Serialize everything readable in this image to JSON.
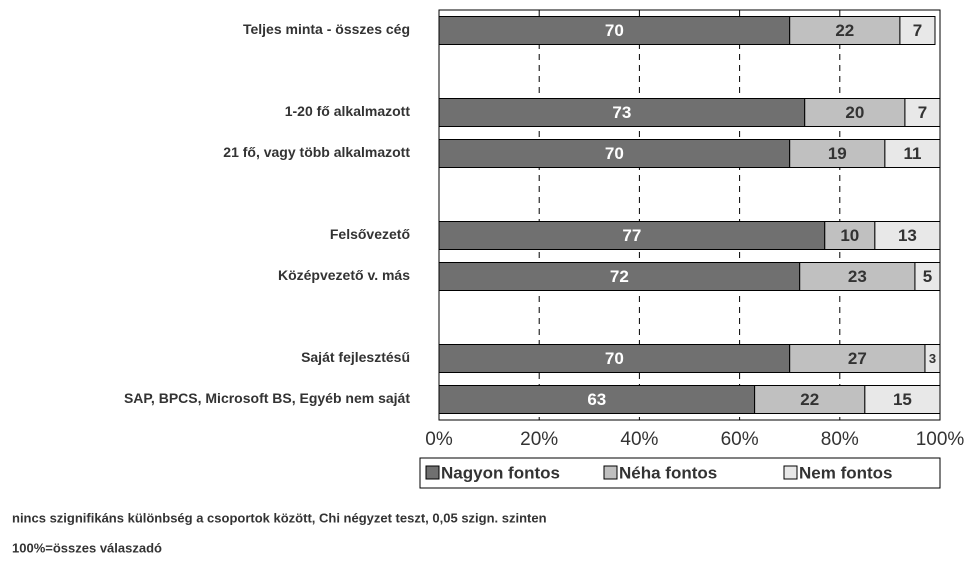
{
  "chart_data": {
    "type": "stacked_barh",
    "categories": [
      "Teljes minta - összes cég",
      null,
      "1-20 fő alkalmazott",
      "21 fő, vagy több alkalmazott",
      null,
      "Felsővezető",
      "Középvezető v. más",
      null,
      "Saját fejlesztésű",
      "SAP, BPCS, Microsoft BS, Egyéb nem saját"
    ],
    "series": [
      {
        "name": "Nagyon fontos",
        "color": "#707070",
        "label_color": "#ffffff",
        "values": [
          70,
          null,
          73,
          70,
          null,
          77,
          72,
          null,
          70,
          63
        ]
      },
      {
        "name": "Néha fontos",
        "color": "#c0c0c0",
        "label_color": "#333333",
        "values": [
          22,
          null,
          20,
          19,
          null,
          10,
          23,
          null,
          27,
          22
        ]
      },
      {
        "name": "Nem fontos",
        "color": "#e8e8e8",
        "label_color": "#333333",
        "values": [
          7,
          null,
          7,
          11,
          null,
          13,
          5,
          null,
          3,
          15
        ]
      }
    ],
    "xlim": [
      0,
      100
    ],
    "xticks": [
      {
        "value": 0,
        "label": "0%"
      },
      {
        "value": 20,
        "label": "20%"
      },
      {
        "value": 40,
        "label": "40%"
      },
      {
        "value": 60,
        "label": "60%"
      },
      {
        "value": 80,
        "label": "80%"
      },
      {
        "value": 100,
        "label": "100%"
      }
    ],
    "grid": true,
    "legend": "bottom",
    "annotations": [
      "nincs szignifikáns különbség a csoportok között, Chi négyzet teszt, 0,05 szign. szinten",
      "100%=összes válaszadó"
    ]
  }
}
